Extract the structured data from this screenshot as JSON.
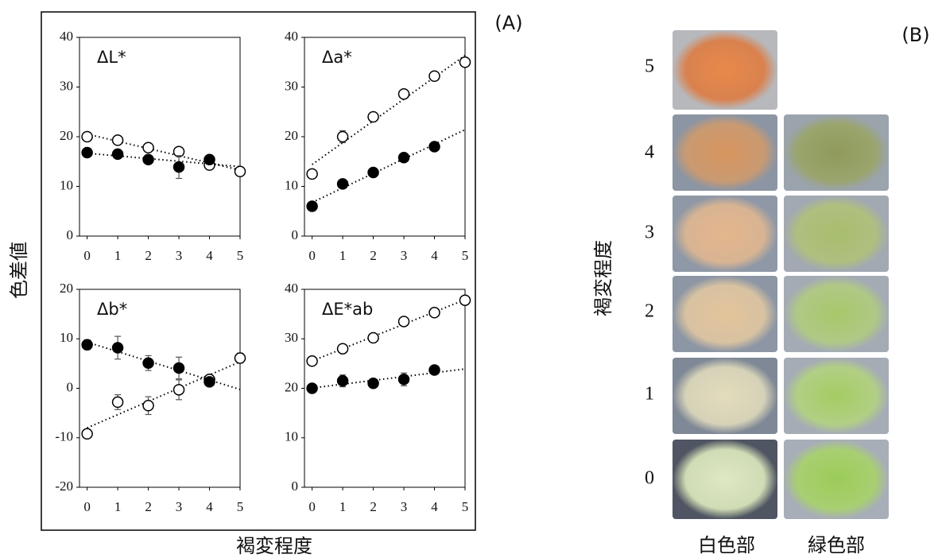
{
  "panel_a": {
    "label": "(A)",
    "ylabel": "色差値",
    "xlabel": "褐変程度"
  },
  "panel_b": {
    "label": "(B)",
    "ylabel": "褐変程度",
    "rows": [
      5,
      4,
      3,
      2,
      1,
      0
    ],
    "columns": [
      "白色部",
      "緑色部"
    ]
  },
  "chart_data": [
    {
      "type": "scatter",
      "title": "ΔL*",
      "xlim": [
        -0.25,
        5
      ],
      "ylim": [
        0,
        40
      ],
      "xticks": [
        0,
        1,
        2,
        3,
        4,
        5
      ],
      "yticks": [
        0,
        10,
        20,
        30,
        40
      ],
      "trendline": true,
      "series": [
        {
          "marker": "open",
          "color": "#000000",
          "x": [
            0,
            1,
            2,
            3,
            4,
            5
          ],
          "values": [
            20,
            19.3,
            17.8,
            17,
            14.3,
            13
          ],
          "errors": [
            0.5,
            0.6,
            0.5,
            0.5,
            0.6,
            0.6
          ]
        },
        {
          "marker": "filled",
          "color": "#000000",
          "x": [
            0,
            1,
            2,
            3,
            4
          ],
          "values": [
            16.8,
            16.5,
            15.4,
            13.9,
            15.4
          ],
          "errors": [
            0.5,
            0.5,
            0.8,
            2.3,
            0.8
          ]
        }
      ]
    },
    {
      "type": "scatter",
      "title": "Δa*",
      "xlim": [
        -0.25,
        5
      ],
      "ylim": [
        0,
        40
      ],
      "xticks": [
        0,
        1,
        2,
        3,
        4,
        5
      ],
      "yticks": [
        0,
        10,
        20,
        30,
        40
      ],
      "trendline": true,
      "series": [
        {
          "marker": "open",
          "color": "#000000",
          "x": [
            0,
            1,
            2,
            3,
            4,
            5
          ],
          "values": [
            12.5,
            20,
            24,
            28.6,
            32.2,
            35
          ],
          "errors": [
            0.5,
            1.2,
            0.6,
            0.5,
            0.5,
            0.5
          ]
        },
        {
          "marker": "filled",
          "color": "#000000",
          "x": [
            0,
            1,
            2,
            3,
            4
          ],
          "values": [
            6,
            10.5,
            12.8,
            15.8,
            18
          ],
          "errors": [
            0.5,
            0.5,
            0.5,
            0.5,
            0.5
          ]
        }
      ]
    },
    {
      "type": "scatter",
      "title": "Δb*",
      "xlim": [
        -0.25,
        5
      ],
      "ylim": [
        -20,
        20
      ],
      "xticks": [
        0,
        1,
        2,
        3,
        4,
        5
      ],
      "yticks": [
        -20,
        -10,
        0,
        10,
        20
      ],
      "trendline": true,
      "series": [
        {
          "marker": "open",
          "color": "#000000",
          "x": [
            0,
            1,
            2,
            3,
            4,
            5
          ],
          "values": [
            -9.2,
            -2.8,
            -3.5,
            -0.3,
            1.8,
            6.1
          ],
          "errors": [
            0.8,
            1.5,
            1.8,
            2,
            0.8,
            1
          ]
        },
        {
          "marker": "filled",
          "color": "#000000",
          "x": [
            0,
            1,
            2,
            3,
            4
          ],
          "values": [
            8.8,
            8.2,
            5.1,
            4.1,
            1.3
          ],
          "errors": [
            1,
            2.3,
            1.5,
            2.2,
            0.8
          ]
        }
      ]
    },
    {
      "type": "scatter",
      "title": "ΔE*ab",
      "xlim": [
        -0.25,
        5
      ],
      "ylim": [
        0,
        40
      ],
      "xticks": [
        0,
        1,
        2,
        3,
        4,
        5
      ],
      "yticks": [
        0,
        10,
        20,
        30,
        40
      ],
      "trendline": true,
      "series": [
        {
          "marker": "open",
          "color": "#000000",
          "x": [
            0,
            1,
            2,
            3,
            4,
            5
          ],
          "values": [
            25.5,
            28,
            30.2,
            33.5,
            35.3,
            37.8
          ],
          "errors": [
            0.5,
            0.5,
            0.6,
            0.5,
            0.5,
            0.5
          ]
        },
        {
          "marker": "filled",
          "color": "#000000",
          "x": [
            0,
            1,
            2,
            3,
            4
          ],
          "values": [
            20,
            21.5,
            21,
            21.8,
            23.7
          ],
          "errors": [
            0.5,
            1.2,
            0.8,
            1.3,
            0.6
          ]
        }
      ]
    }
  ]
}
